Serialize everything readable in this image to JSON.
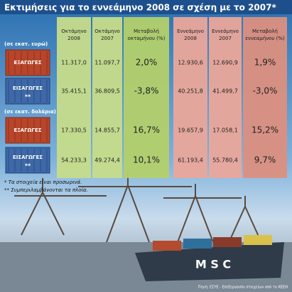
{
  "title": "Εκτιμήσεις για το εννεάμηνο 2008 σε σχέση με το 2007*",
  "columns": [
    [
      "Οκτάμηνο",
      "2008"
    ],
    [
      "Οκτάμηνο",
      "2007"
    ],
    [
      "Μεταβολή",
      "οκταμήνου (%)"
    ],
    [
      "Εννεάμηνο",
      "2008"
    ],
    [
      "Εννεάμηνο",
      "2007"
    ],
    [
      "Μεταβολή",
      "εννεαμήνου (%)"
    ]
  ],
  "sections": [
    {
      "unit": "(σε εκατ. ευρώ)",
      "rows": [
        {
          "label": "ΕΞΑΓΩΓΕΣ",
          "cells": [
            "11.317,0",
            "11.097,7",
            "2,0%",
            "12.930,6",
            "12.690,9",
            "1,9%"
          ]
        },
        {
          "label": "ΕΙΣΑΓΩΓΕΣ",
          "marker": "**",
          "cells": [
            "35.415,1",
            "36.809,5",
            "-3,8%",
            "40.251,8",
            "41.499,7",
            "-3,0%"
          ]
        }
      ]
    },
    {
      "unit": "(σε εκατ. δολάρια)",
      "rows": [
        {
          "label": "ΕΞΑΓΩΓΕΣ",
          "cells": [
            "17.330,5",
            "14.855,7",
            "16,7%",
            "19.657,9",
            "17.058,1",
            "15,2%"
          ]
        },
        {
          "label": "ΕΙΣΑΓΩΓΕΣ",
          "marker": "**",
          "cells": [
            "54.233,3",
            "49.274,4",
            "10,1%",
            "61.193,4",
            "55.780,4",
            "9,7%"
          ]
        }
      ]
    }
  ],
  "notes": [
    "* Τα στοιχεία είναι προσωρινά.",
    "** Συμπεριλαμβάνονται τα πλοία."
  ],
  "ship_name": "M S C",
  "source": "Πηγή: ΕΣΥΕ - Επεξεργασία στοιχείων από το ΚΕΕΘ"
}
